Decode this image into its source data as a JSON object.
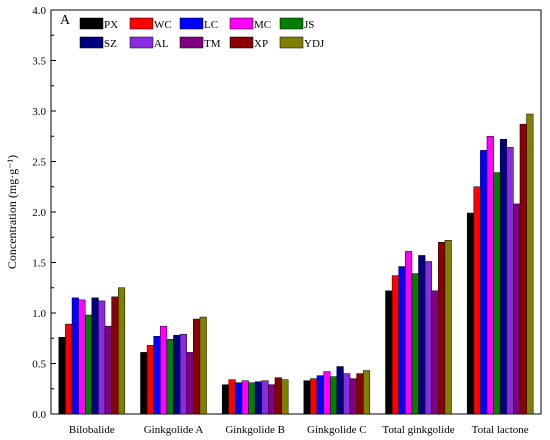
{
  "chart_data": {
    "type": "bar",
    "panel_label": "A",
    "title": "",
    "xlabel": "",
    "ylabel": "Concentration (mg·g⁻¹)",
    "ylim": [
      0,
      4.0
    ],
    "ytick_labels": [
      "0.0",
      "0.5",
      "1.0",
      "1.5",
      "2.0",
      "2.5",
      "3.0",
      "3.5",
      "4.0"
    ],
    "categories": [
      "Bilobalide",
      "Ginkgolide A",
      "Ginkgolide B",
      "Ginkgolide C",
      "Total ginkgolide",
      "Total lactone"
    ],
    "legend_position": "top-left",
    "grid": false,
    "series": [
      {
        "name": "PX",
        "color": "#000000",
        "values": [
          0.76,
          0.61,
          0.29,
          0.33,
          1.22,
          1.99
        ]
      },
      {
        "name": "WC",
        "color": "#ff0000",
        "values": [
          0.89,
          0.68,
          0.34,
          0.35,
          1.37,
          2.25
        ]
      },
      {
        "name": "LC",
        "color": "#0000ff",
        "values": [
          1.15,
          0.77,
          0.31,
          0.38,
          1.46,
          2.61
        ]
      },
      {
        "name": "MC",
        "color": "#ff00ff",
        "values": [
          1.13,
          0.87,
          0.33,
          0.42,
          1.61,
          2.75
        ]
      },
      {
        "name": "JS",
        "color": "#008000",
        "values": [
          0.98,
          0.74,
          0.31,
          0.37,
          1.39,
          2.39
        ]
      },
      {
        "name": "SZ",
        "color": "#000080",
        "values": [
          1.15,
          0.78,
          0.32,
          0.47,
          1.57,
          2.72
        ]
      },
      {
        "name": "AL",
        "color": "#8a2be2",
        "values": [
          1.12,
          0.79,
          0.33,
          0.4,
          1.51,
          2.64
        ]
      },
      {
        "name": "TM",
        "color": "#800080",
        "values": [
          0.87,
          0.61,
          0.29,
          0.35,
          1.22,
          2.08
        ]
      },
      {
        "name": "XP",
        "color": "#8b0000",
        "values": [
          1.16,
          0.94,
          0.36,
          0.4,
          1.7,
          2.87
        ]
      },
      {
        "name": "YDJ",
        "color": "#808000",
        "values": [
          1.25,
          0.96,
          0.34,
          0.43,
          1.72,
          2.97
        ]
      }
    ]
  }
}
